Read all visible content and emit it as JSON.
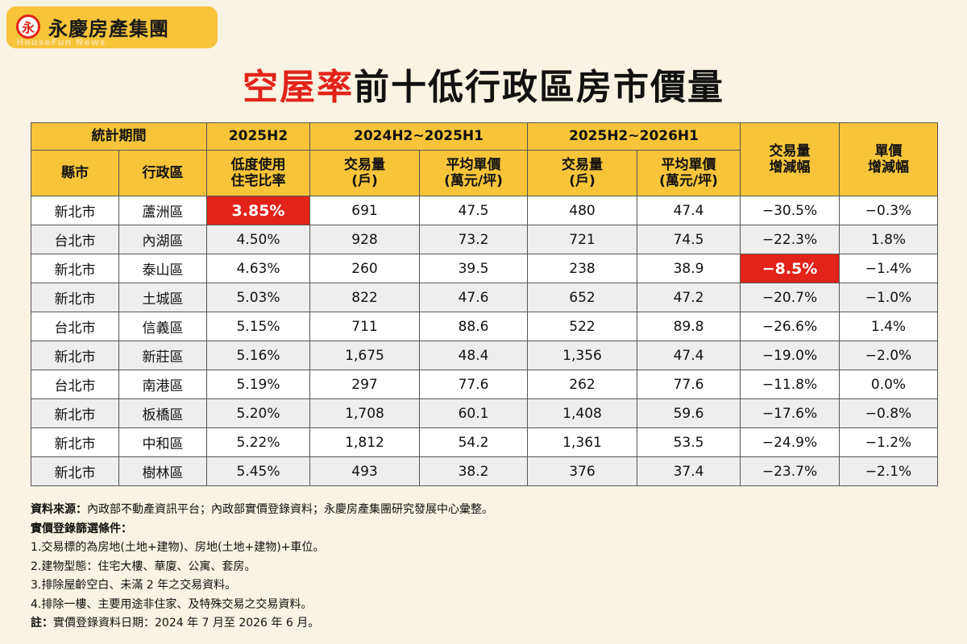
{
  "brand": {
    "mark": "永",
    "name": "永慶房產集團",
    "sub": "HouseFun News"
  },
  "title": {
    "highlight": "空屋率",
    "rest": "前十低行政區房市價量"
  },
  "table": {
    "head_row1": {
      "period": "統計期間",
      "h2025": "2025H2",
      "p1": "2024H2~2025H1",
      "p2": "2025H2~2026H1",
      "vol_change": "交易量\n增減幅",
      "price_change": "單價\n增減幅"
    },
    "head_row2": {
      "city": "縣市",
      "district": "行政區",
      "rate": "低度使用\n住宅比率",
      "vol1": "交易量\n(戶)",
      "price1": "平均單價\n(萬元/坪)",
      "vol2": "交易量\n(戶)",
      "price2": "平均單價\n(萬元/坪)"
    },
    "rows": [
      {
        "city": "新北市",
        "district": "蘆洲區",
        "rate": "3.85%",
        "vol1": "691",
        "price1": "47.5",
        "vol2": "480",
        "price2": "47.4",
        "vol_chg": "−30.5%",
        "price_chg": "−0.3%"
      },
      {
        "city": "台北市",
        "district": "內湖區",
        "rate": "4.50%",
        "vol1": "928",
        "price1": "73.2",
        "vol2": "721",
        "price2": "74.5",
        "vol_chg": "−22.3%",
        "price_chg": "1.8%"
      },
      {
        "city": "新北市",
        "district": "泰山區",
        "rate": "4.63%",
        "vol1": "260",
        "price1": "39.5",
        "vol2": "238",
        "price2": "38.9",
        "vol_chg": "−8.5%",
        "price_chg": "−1.4%"
      },
      {
        "city": "新北市",
        "district": "土城區",
        "rate": "5.03%",
        "vol1": "822",
        "price1": "47.6",
        "vol2": "652",
        "price2": "47.2",
        "vol_chg": "−20.7%",
        "price_chg": "−1.0%"
      },
      {
        "city": "台北市",
        "district": "信義區",
        "rate": "5.15%",
        "vol1": "711",
        "price1": "88.6",
        "vol2": "522",
        "price2": "89.8",
        "vol_chg": "−26.6%",
        "price_chg": "1.4%"
      },
      {
        "city": "新北市",
        "district": "新莊區",
        "rate": "5.16%",
        "vol1": "1,675",
        "price1": "48.4",
        "vol2": "1,356",
        "price2": "47.4",
        "vol_chg": "−19.0%",
        "price_chg": "−2.0%"
      },
      {
        "city": "台北市",
        "district": "南港區",
        "rate": "5.19%",
        "vol1": "297",
        "price1": "77.6",
        "vol2": "262",
        "price2": "77.6",
        "vol_chg": "−11.8%",
        "price_chg": "0.0%"
      },
      {
        "city": "新北市",
        "district": "板橋區",
        "rate": "5.20%",
        "vol1": "1,708",
        "price1": "60.1",
        "vol2": "1,408",
        "price2": "59.6",
        "vol_chg": "−17.6%",
        "price_chg": "−0.8%"
      },
      {
        "city": "新北市",
        "district": "中和區",
        "rate": "5.22%",
        "vol1": "1,812",
        "price1": "54.2",
        "vol2": "1,361",
        "price2": "53.5",
        "vol_chg": "−24.9%",
        "price_chg": "−1.2%"
      },
      {
        "city": "新北市",
        "district": "樹林區",
        "rate": "5.45%",
        "vol1": "493",
        "price1": "38.2",
        "vol2": "376",
        "price2": "37.4",
        "vol_chg": "−23.7%",
        "price_chg": "−2.1%"
      }
    ],
    "highlight_color": "#e2231a",
    "header_color": "#f7c43a"
  },
  "notes": {
    "source_label": "資料來源：",
    "source_text": "內政部不動產資訊平台；內政部實價登錄資料；永慶房產集團研究發展中心彙整。",
    "filter_label": "實價登錄篩選條件：",
    "items": [
      "1.交易標的為房地(土地+建物)、房地(土地+建物)+車位。",
      "2.建物型態：住宅大樓、華廈、公寓、套房。",
      "3.排除屋齡空白、未滿 2 年之交易資料。",
      "4.排除一樓、主要用途非住家、及特殊交易之交易資料。"
    ],
    "note_label": "註：",
    "note_text": "實價登錄資料日期：2024 年 7 月至 2026 年 6 月。"
  }
}
